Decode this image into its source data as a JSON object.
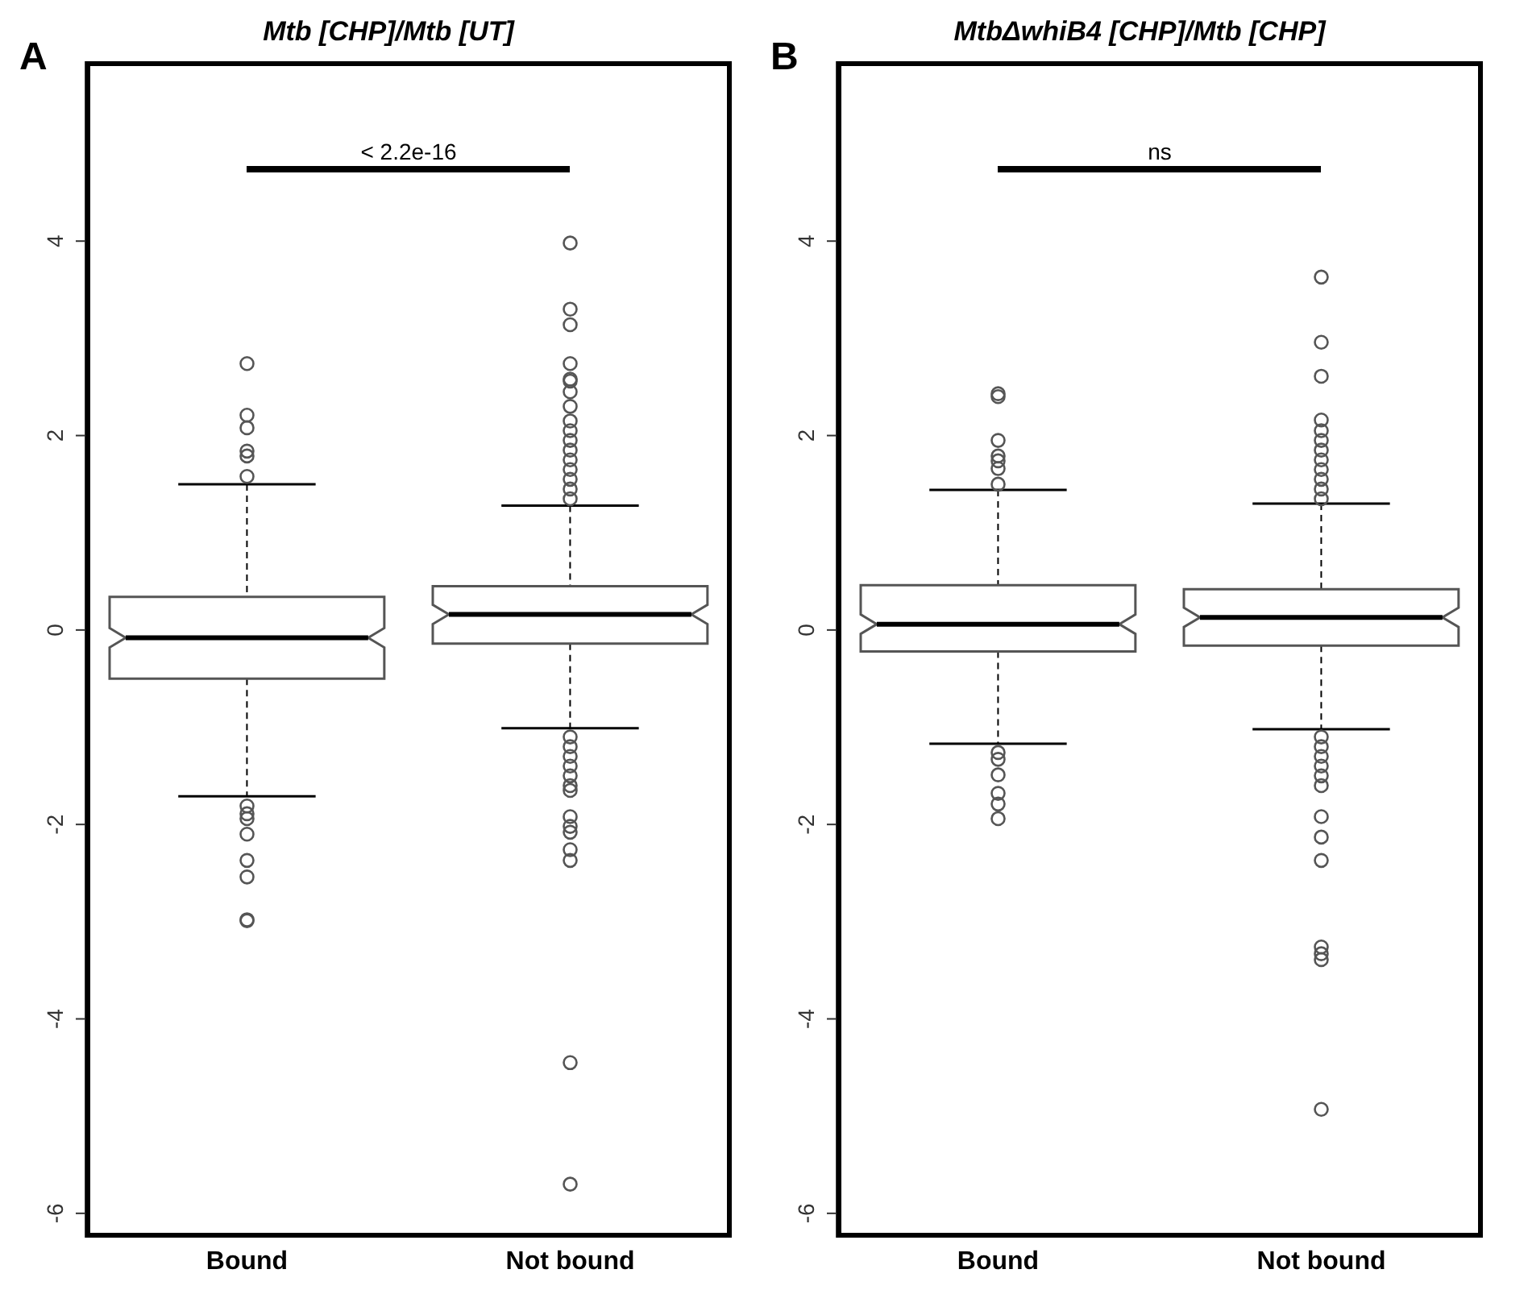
{
  "chart_data": [
    {
      "type": "box",
      "title": "Mtb [CHP]/Mtb [UT]",
      "categories": [
        "Bound",
        "Not bound"
      ],
      "ylim": [
        -6.25,
        5.85
      ],
      "yticks": [
        -6,
        -4,
        -2,
        0,
        2,
        4
      ],
      "annotations": [
        "A",
        "< 2.2e-16"
      ],
      "boxes": [
        {
          "low": -1.71,
          "q1": -0.5,
          "median": -0.08,
          "q3": 0.34,
          "high": 1.5,
          "outliers": [
            2.74,
            2.21,
            2.08,
            1.84,
            1.79,
            1.58,
            -1.81,
            -1.89,
            -1.94,
            -2.1,
            -2.37,
            -2.54,
            -2.98,
            -2.99
          ]
        },
        {
          "low": -1.01,
          "q1": -0.14,
          "median": 0.16,
          "q3": 0.45,
          "high": 1.28,
          "outliers": [
            3.98,
            3.3,
            3.14,
            2.74,
            2.58,
            2.56,
            2.45,
            2.3,
            2.15,
            2.05,
            1.95,
            1.85,
            1.75,
            1.65,
            1.55,
            1.45,
            1.35,
            -1.1,
            -1.2,
            -1.3,
            -1.4,
            -1.5,
            -1.6,
            -1.65,
            -1.92,
            -2.02,
            -2.08,
            -2.26,
            -2.37,
            -4.45,
            -5.7
          ]
        }
      ]
    },
    {
      "type": "box",
      "title": "MtbΔwhiB4 [CHP]/Mtb [CHP]",
      "categories": [
        "Bound",
        "Not bound"
      ],
      "ylim": [
        -6.25,
        5.85
      ],
      "yticks": [
        -6,
        -4,
        -2,
        0,
        2,
        4
      ],
      "annotations": [
        "B",
        "ns"
      ],
      "boxes": [
        {
          "low": -1.17,
          "q1": -0.22,
          "median": 0.06,
          "q3": 0.46,
          "high": 1.44,
          "outliers": [
            2.43,
            2.4,
            1.95,
            1.79,
            1.74,
            1.66,
            1.5,
            -1.26,
            -1.33,
            -1.49,
            -1.68,
            -1.79,
            -1.94
          ]
        },
        {
          "low": -1.02,
          "q1": -0.16,
          "median": 0.13,
          "q3": 0.42,
          "high": 1.3,
          "outliers": [
            3.63,
            2.96,
            2.61,
            2.16,
            2.05,
            1.95,
            1.85,
            1.75,
            1.65,
            1.55,
            1.45,
            1.35,
            -1.1,
            -1.2,
            -1.3,
            -1.4,
            -1.5,
            -1.6,
            -1.92,
            -2.13,
            -2.37,
            -3.26,
            -3.33,
            -3.39,
            -4.93
          ]
        }
      ]
    }
  ]
}
